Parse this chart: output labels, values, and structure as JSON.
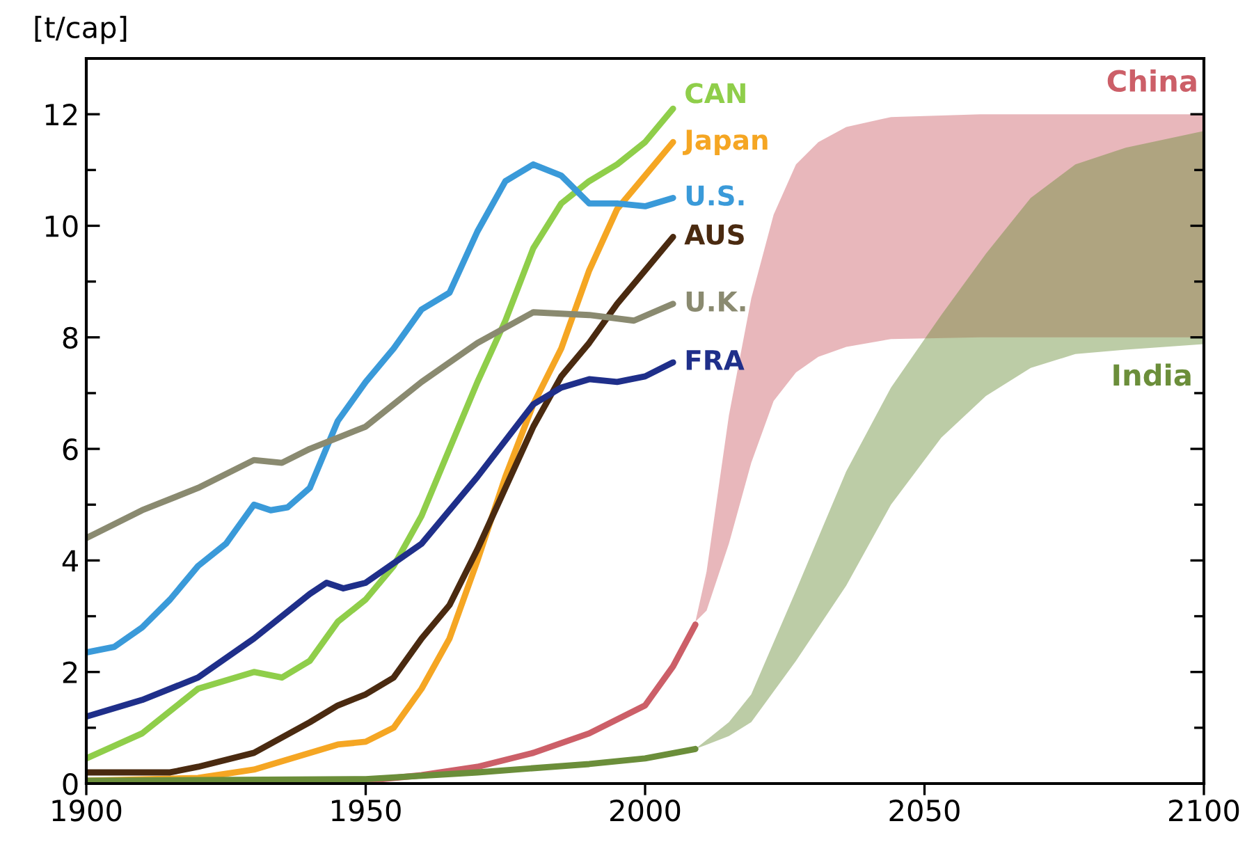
{
  "chart_data": {
    "type": "line",
    "ylabel": "[t/cap]",
    "xlim": [
      1900,
      2100
    ],
    "ylim": [
      0,
      13
    ],
    "xticks": [
      1900,
      1950,
      2000,
      2050,
      2100
    ],
    "yticks": [
      0,
      2,
      4,
      6,
      8,
      10,
      12
    ],
    "grid": false,
    "legend": false,
    "marker": "none",
    "line_style": "solid",
    "series": [
      {
        "name": "CAN",
        "color": "#8fce4a",
        "x": [
          1900,
          1910,
          1920,
          1930,
          1935,
          1940,
          1945,
          1950,
          1955,
          1960,
          1965,
          1970,
          1975,
          1980,
          1985,
          1990,
          1995,
          2000,
          2005
        ],
        "values": [
          0.45,
          0.9,
          1.7,
          2.0,
          1.9,
          2.2,
          2.9,
          3.3,
          3.9,
          4.8,
          6.0,
          7.2,
          8.3,
          9.6,
          10.4,
          10.8,
          11.1,
          11.5,
          12.1
        ]
      },
      {
        "name": "Japan",
        "color": "#f5a623",
        "x": [
          1900,
          1920,
          1930,
          1940,
          1945,
          1950,
          1955,
          1960,
          1965,
          1970,
          1975,
          1980,
          1985,
          1990,
          1995,
          2000,
          2005
        ],
        "values": [
          0.05,
          0.1,
          0.25,
          0.55,
          0.7,
          0.75,
          1.0,
          1.7,
          2.6,
          4.0,
          5.5,
          6.8,
          7.8,
          9.2,
          10.3,
          10.9,
          11.5
        ]
      },
      {
        "name": "U.S.",
        "color": "#3a9ad9",
        "x": [
          1900,
          1905,
          1910,
          1915,
          1920,
          1925,
          1930,
          1933,
          1936,
          1940,
          1945,
          1950,
          1955,
          1960,
          1965,
          1970,
          1975,
          1980,
          1985,
          1990,
          1995,
          2000,
          2005
        ],
        "values": [
          2.35,
          2.45,
          2.8,
          3.3,
          3.9,
          4.3,
          5.0,
          4.9,
          4.95,
          5.3,
          6.5,
          7.2,
          7.8,
          8.5,
          8.8,
          9.9,
          10.8,
          11.1,
          10.9,
          10.4,
          10.4,
          10.35,
          10.5
        ]
      },
      {
        "name": "AUS",
        "color": "#4a2a10",
        "x": [
          1900,
          1915,
          1920,
          1930,
          1940,
          1945,
          1950,
          1955,
          1960,
          1965,
          1970,
          1975,
          1980,
          1985,
          1990,
          1995,
          2000,
          2005
        ],
        "values": [
          0.2,
          0.2,
          0.3,
          0.55,
          1.1,
          1.4,
          1.6,
          1.9,
          2.6,
          3.2,
          4.2,
          5.3,
          6.4,
          7.3,
          7.9,
          8.6,
          9.2,
          9.8
        ]
      },
      {
        "name": "U.K.",
        "color": "#8a8a70",
        "x": [
          1900,
          1910,
          1920,
          1930,
          1935,
          1940,
          1950,
          1960,
          1970,
          1980,
          1990,
          1998,
          2005
        ],
        "values": [
          4.4,
          4.9,
          5.3,
          5.8,
          5.75,
          6.0,
          6.4,
          7.2,
          7.9,
          8.45,
          8.4,
          8.3,
          8.6
        ]
      },
      {
        "name": "FRA",
        "color": "#1f2f8a",
        "x": [
          1900,
          1910,
          1920,
          1930,
          1940,
          1943,
          1946,
          1950,
          1960,
          1970,
          1980,
          1985,
          1990,
          1995,
          2000,
          2005
        ],
        "values": [
          1.2,
          1.5,
          1.9,
          2.6,
          3.4,
          3.6,
          3.5,
          3.6,
          4.3,
          5.5,
          6.8,
          7.1,
          7.25,
          7.2,
          7.3,
          7.55
        ]
      },
      {
        "name": "China",
        "color": "#cc5f68",
        "x": [
          1900,
          1950,
          1960,
          1970,
          1980,
          1990,
          2000,
          2005,
          2009,
          2011,
          2015,
          2019,
          2023,
          2027,
          2031,
          2036,
          2044,
          2060,
          2100
        ],
        "values": [
          0,
          0.05,
          0.15,
          0.3,
          0.55,
          0.9,
          1.4,
          2.1,
          2.85,
          null,
          null,
          null,
          null,
          null,
          null,
          null,
          null,
          null,
          null
        ],
        "lower": [
          null,
          null,
          null,
          null,
          null,
          null,
          null,
          null,
          2.9,
          3.1,
          4.3,
          5.75,
          6.86,
          7.37,
          7.65,
          7.83,
          7.97,
          8.0,
          8.0
        ],
        "upper": [
          null,
          null,
          null,
          null,
          null,
          null,
          null,
          null,
          2.9,
          3.8,
          6.6,
          8.7,
          10.2,
          11.1,
          11.5,
          11.77,
          11.95,
          12.0,
          12.0
        ]
      },
      {
        "name": "India",
        "color": "#6b8e3a",
        "x": [
          1900,
          1950,
          1970,
          1990,
          2000,
          2009,
          2015,
          2019,
          2027,
          2036,
          2044,
          2053,
          2061,
          2069,
          2077,
          2086,
          2100
        ],
        "values": [
          0.05,
          0.08,
          0.2,
          0.35,
          0.45,
          0.62,
          null,
          null,
          null,
          null,
          null,
          null,
          null,
          null,
          null,
          null,
          null
        ],
        "lower": [
          null,
          null,
          null,
          null,
          null,
          0.62,
          0.85,
          1.1,
          2.2,
          3.55,
          5.0,
          6.2,
          6.95,
          7.45,
          7.7,
          7.78,
          7.88
        ],
        "upper": [
          null,
          null,
          null,
          null,
          null,
          0.62,
          1.1,
          1.6,
          3.46,
          5.6,
          7.1,
          8.4,
          9.5,
          10.5,
          11.1,
          11.4,
          11.7
        ]
      }
    ]
  }
}
